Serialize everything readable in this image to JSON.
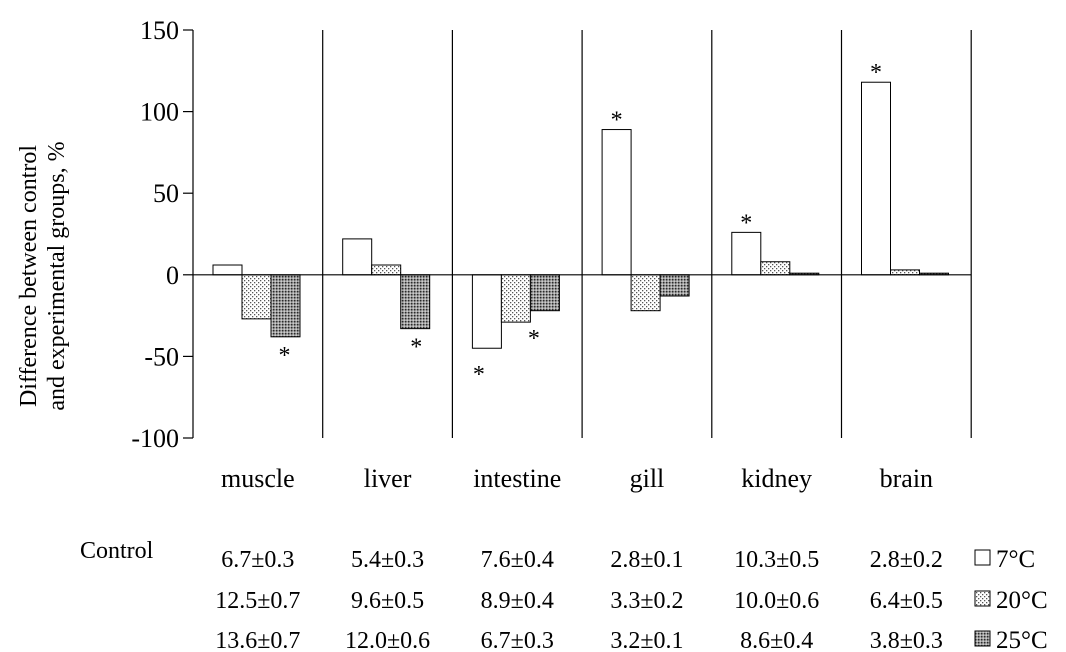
{
  "chart_data": {
    "type": "bar",
    "ylabel_line1": "Difference  between control",
    "ylabel_line2": "and experimental  groups,  %",
    "ylim": [
      -100,
      150
    ],
    "yticks": [
      "150",
      "100",
      "50",
      "0",
      "-50",
      "-100"
    ],
    "ytick_values": [
      150,
      100,
      50,
      0,
      -50,
      -100
    ],
    "categories": [
      "muscle",
      "liver",
      "intestine",
      "gill",
      "kidney",
      "brain"
    ],
    "series": [
      {
        "name": "7°C",
        "values": [
          6,
          22,
          -45,
          89,
          26,
          118
        ]
      },
      {
        "name": "20°C",
        "values": [
          -27,
          6,
          -29,
          -22,
          8,
          3
        ]
      },
      {
        "name": "25°C",
        "values": [
          -38,
          -33,
          -22,
          -13,
          1,
          1
        ]
      }
    ],
    "significance": [
      {
        "category": "muscle",
        "series": "25°C",
        "label": "*"
      },
      {
        "category": "intestine",
        "series": "7°C",
        "label": "*"
      },
      {
        "category": "intestine",
        "series": "20°C",
        "label": "*"
      },
      {
        "category": "liver",
        "series": "25°C",
        "label": "*"
      },
      {
        "category": "gill",
        "series": "7°C",
        "label": "*"
      },
      {
        "category": "kidney",
        "series": "7°C",
        "label": "*"
      },
      {
        "category": "brain",
        "series": "7°C",
        "label": "*"
      }
    ],
    "grid": false,
    "legend_position": "right of table"
  },
  "table": {
    "row_label": "Control",
    "rows": [
      [
        "6.7±0.3",
        "5.4±0.3",
        "7.6±0.4",
        "2.8±0.1",
        "10.3±0.5",
        "2.8±0.2"
      ],
      [
        "12.5±0.7",
        "9.6±0.5",
        "8.9±0.4",
        "3.3±0.2",
        "10.0±0.6",
        "6.4±0.5"
      ],
      [
        "13.6±0.7",
        "12.0±0.6",
        "6.7±0.3",
        "3.2±0.1",
        "8.6±0.4",
        "3.8±0.3"
      ]
    ]
  },
  "legend": [
    {
      "label": "7°C",
      "pattern": "none"
    },
    {
      "label": "20°C",
      "pattern": "dots"
    },
    {
      "label": "25°C",
      "pattern": "dense"
    }
  ]
}
